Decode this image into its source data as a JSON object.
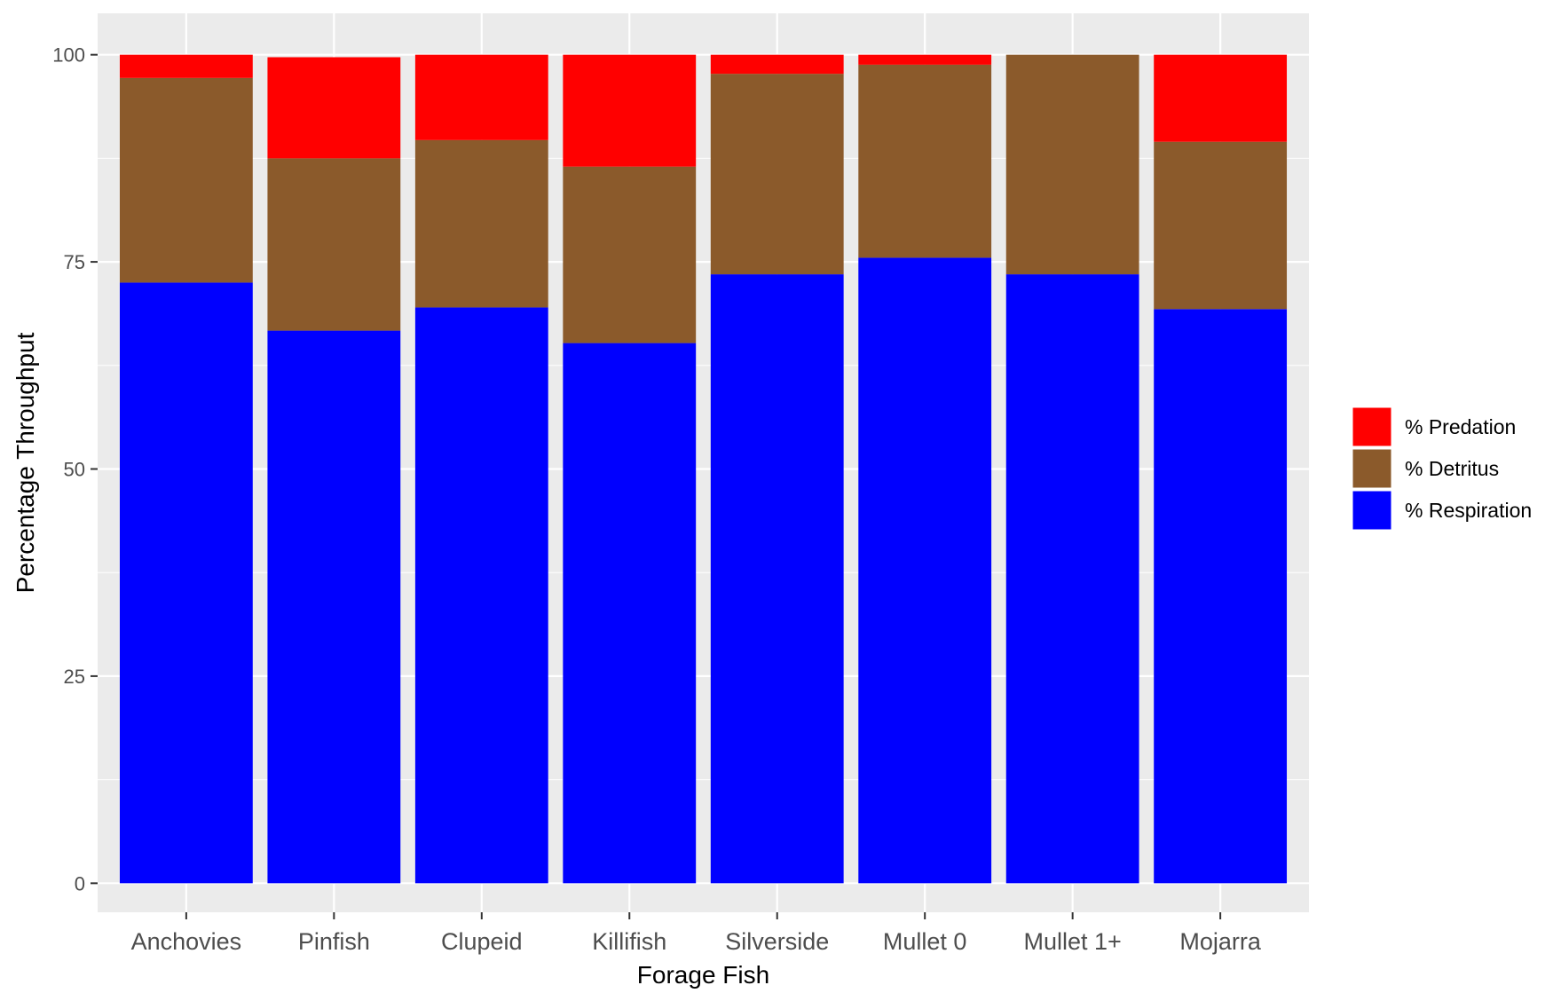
{
  "chart_data": {
    "type": "bar",
    "stacked": true,
    "xlabel": "Forage Fish",
    "ylabel": "Percentage Throughput",
    "categories": [
      "Anchovies",
      "Pinfish",
      "Clupeid",
      "Killifish",
      "Silverside",
      "Mullet 0",
      "Mullet 1+",
      "Mojarra"
    ],
    "series": [
      {
        "name": "% Respiration",
        "color": "#0000ff",
        "values": [
          72.5,
          66.7,
          69.5,
          65.2,
          73.5,
          75.5,
          73.5,
          69.3
        ]
      },
      {
        "name": "% Detritus",
        "color": "#8b5a2b",
        "values": [
          24.7,
          20.8,
          20.2,
          21.3,
          24.2,
          23.3,
          26.5,
          20.2
        ]
      },
      {
        "name": "% Predation",
        "color": "#ff0000",
        "values": [
          2.8,
          12.2,
          10.3,
          13.5,
          2.3,
          1.2,
          0.0,
          10.5
        ]
      }
    ],
    "legend_order": [
      "% Predation",
      "% Detritus",
      "% Respiration"
    ],
    "legend_position": "right",
    "ylim": [
      -3.5,
      105
    ],
    "yticks": [
      0,
      25,
      50,
      75,
      100
    ],
    "grid": true,
    "panel_background": "#ebebeb",
    "grid_color": "#ffffff"
  }
}
